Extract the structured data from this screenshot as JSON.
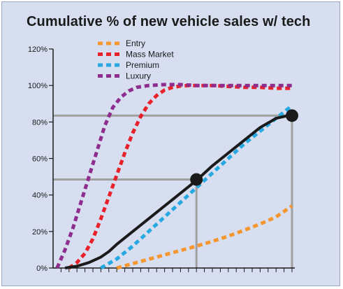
{
  "chart_data": {
    "type": "line",
    "title": "Cumulative % of new vehicle sales w/ tech",
    "xlabel": "",
    "ylabel": "",
    "ylim": [
      0,
      120
    ],
    "xlim": [
      0,
      30
    ],
    "y_ticks": [
      "0%",
      "20%",
      "40%",
      "60%",
      "80%",
      "100%",
      "120%"
    ],
    "grid": false,
    "legend_position": "top-center",
    "series": [
      {
        "name": "Entry",
        "color": "#f5962e",
        "style": "dashed",
        "x": [
          8,
          10,
          12,
          14,
          16,
          18,
          20,
          22,
          24,
          26,
          28,
          30
        ],
        "y": [
          0,
          2.4,
          4.8,
          7.2,
          9.6,
          12,
          14.6,
          17.5,
          20.7,
          24.1,
          28,
          34
        ]
      },
      {
        "name": "Mass Market",
        "color": "#e8202a",
        "style": "dashed",
        "x": [
          2,
          3,
          4,
          5,
          6,
          7,
          8,
          9,
          10,
          11,
          12,
          13,
          14,
          15,
          16,
          17,
          18,
          20,
          22,
          24,
          26,
          28,
          30
        ],
        "y": [
          0,
          3,
          8,
          16,
          27,
          39,
          51,
          63,
          74,
          83,
          90,
          94.5,
          97.5,
          99,
          99.7,
          100,
          100,
          100,
          99.5,
          99,
          99,
          98.5,
          98.5
        ]
      },
      {
        "name": "Premium",
        "color": "#27a8e0",
        "style": "dashed",
        "x": [
          6,
          8,
          10,
          12,
          14,
          16,
          18,
          20,
          22,
          24,
          26,
          28,
          30
        ],
        "y": [
          0,
          5,
          12,
          20,
          28,
          36,
          44,
          52,
          60,
          68,
          75,
          82,
          89
        ]
      },
      {
        "name": "Luxury",
        "color": "#8e2d8e",
        "style": "dashed",
        "x": [
          0.5,
          1.5,
          2.5,
          3.5,
          4.5,
          5.5,
          6.5,
          7.5,
          8.5,
          9.5,
          10.5,
          12,
          14,
          16,
          18,
          20,
          22,
          24,
          26,
          28,
          30
        ],
        "y": [
          0,
          10,
          22,
          36,
          50,
          64,
          78,
          88,
          93.5,
          97,
          99,
          100,
          100.5,
          100.5,
          100,
          100,
          100,
          100,
          100,
          100,
          100
        ]
      },
      {
        "name": "",
        "color": "#1a1a1a",
        "style": "solid",
        "x": [
          1.5,
          3,
          4.5,
          6,
          7,
          8,
          10,
          12,
          14,
          16,
          18,
          20,
          22,
          24,
          26,
          28,
          30
        ],
        "y": [
          0,
          1,
          3,
          6,
          9,
          13,
          20,
          27,
          34,
          41,
          48,
          56,
          63,
          70,
          77,
          82,
          84
        ]
      }
    ],
    "markers": [
      {
        "x": 18,
        "y": 48.5,
        "color": "#1a1a1a"
      },
      {
        "x": 30,
        "y": 83.5,
        "color": "#1a1a1a"
      }
    ],
    "reference_lines": [
      {
        "x": 18,
        "y": 48.5,
        "color": "#a0a0a0"
      },
      {
        "x": 30,
        "y": 83.5,
        "color": "#a0a0a0"
      }
    ]
  }
}
